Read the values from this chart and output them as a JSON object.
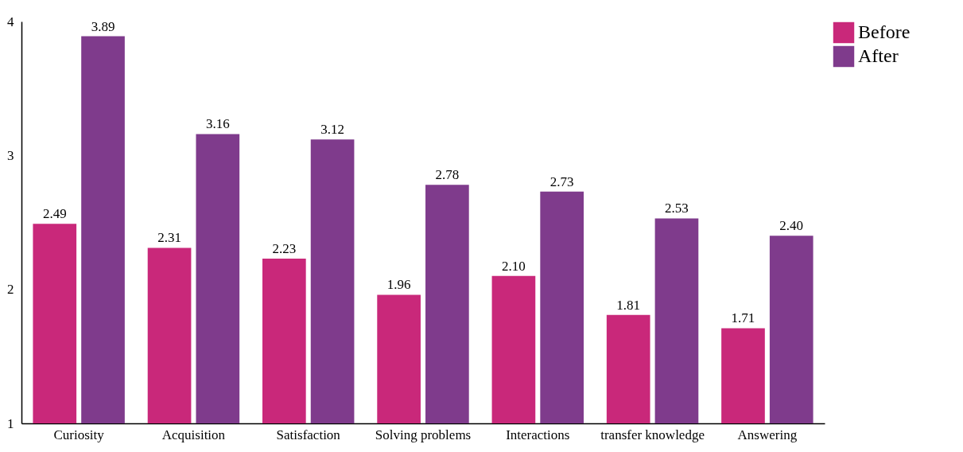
{
  "chart_data": {
    "type": "bar",
    "categories": [
      "Curiosity",
      "Acquisition",
      "Satisfaction",
      "Solving problems",
      "Interactions",
      "transfer knowledge",
      "Answering"
    ],
    "series": [
      {
        "name": "Before",
        "color": "#c9287a",
        "values": [
          2.49,
          2.31,
          2.23,
          1.96,
          2.1,
          1.81,
          1.71
        ],
        "value_labels": [
          "2.49",
          "2.31",
          "2.23",
          "1.96",
          "2.10",
          "1.81",
          "1.71"
        ]
      },
      {
        "name": "After",
        "color": "#7f3b8c",
        "values": [
          3.89,
          3.16,
          3.12,
          2.78,
          2.73,
          2.53,
          2.4
        ],
        "value_labels": [
          "3.89",
          "3.16",
          "3.12",
          "2.78",
          "2.73",
          "2.53",
          "2.40"
        ]
      }
    ],
    "ylim": [
      1,
      4
    ],
    "yticks": [
      1,
      2,
      3,
      4
    ],
    "grid": false,
    "legend": "top right"
  }
}
